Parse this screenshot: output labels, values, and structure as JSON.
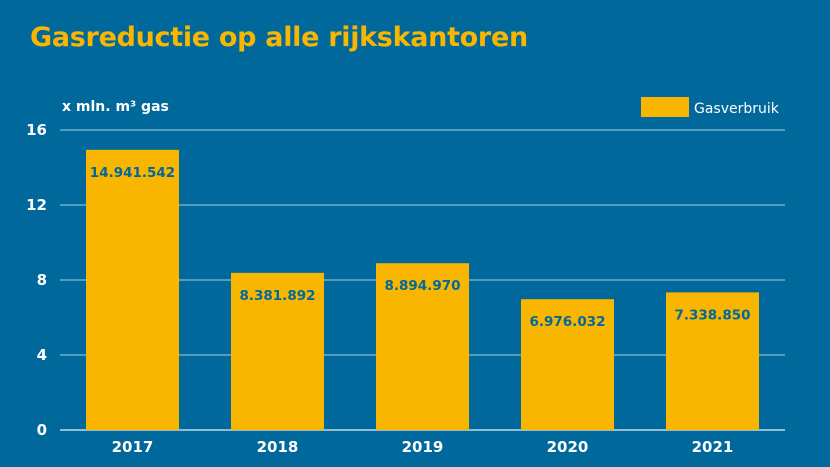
{
  "chart_data": {
    "type": "bar",
    "title": "Gasreductie op alle rijkskantoren",
    "ylabel": "x mln. m³ gas",
    "xlabel": "",
    "categories": [
      "2017",
      "2018",
      "2019",
      "2020",
      "2021"
    ],
    "series": [
      {
        "name": "Gasverbruik",
        "values": [
          14.941542,
          8.381892,
          8.89497,
          6.976032,
          7.33885
        ],
        "labels": [
          "14.941.542",
          "8.381.892",
          "8.894.970",
          "6.976.032",
          "7.338.850"
        ]
      }
    ],
    "yticks": [
      "0",
      "4",
      "8",
      "12",
      "16"
    ],
    "ylim": [
      0,
      16
    ],
    "grid": true,
    "legend_position": "top-right"
  },
  "colors": {
    "background": "#01689b",
    "bar": "#f9b600",
    "title": "#f9b600",
    "label": "#01689b",
    "text": "#ffffff",
    "grid": "#ffffff"
  }
}
